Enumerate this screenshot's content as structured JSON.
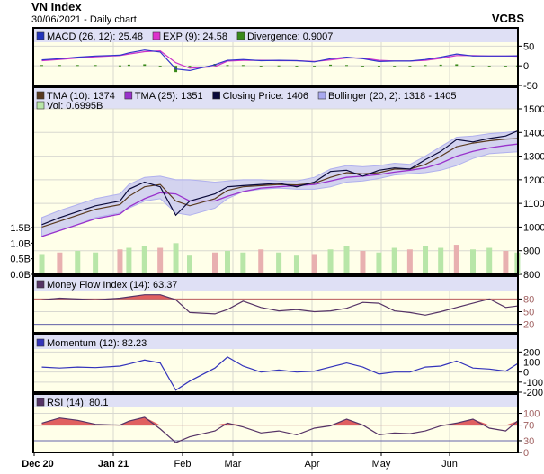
{
  "header": {
    "title": "VN Index",
    "subtitle": "30/06/2021 - Daily chart",
    "brand": "VCBS"
  },
  "colors": {
    "plot_bg": "#ffffe9",
    "legend_bg": "#dfe0f5",
    "grid": "#d8d8d0",
    "tma10": "#5a3a1e",
    "tma25": "#9933cc",
    "close": "#0a0a3a",
    "bollinger": "#b0b0ee",
    "vol_up": "#b8e6a8",
    "vol_down": "#e8b0b0",
    "macd": "#3333cc",
    "exp": "#cc33cc",
    "divergence": "#3a8a1a",
    "mfi": "#553366",
    "momentum": "#3333bb",
    "rsi": "#553366",
    "overbought_fill": "#e06060"
  },
  "chart_data": [
    {
      "type": "line",
      "panel": "macd",
      "legend": [
        {
          "label": "MACD (26, 12): 25.48",
          "color": "#2233bb"
        },
        {
          "label": "EXP (9): 24.58",
          "color": "#dd33cc"
        },
        {
          "label": "Divergence: 0.9007",
          "color": "#3a8a1a"
        }
      ],
      "yticks": [
        "50",
        "0",
        "-50"
      ],
      "ytick_values": [
        50,
        0,
        -50
      ],
      "ylim": [
        -50,
        60
      ],
      "dates": [
        "2020-12-04",
        "2020-12-11",
        "2020-12-18",
        "2020-12-25",
        "2021-01-04",
        "2021-01-08",
        "2021-01-15",
        "2021-01-22",
        "2021-01-29",
        "2021-02-05",
        "2021-02-19",
        "2021-02-26",
        "2021-03-05",
        "2021-03-12",
        "2021-03-19",
        "2021-03-26",
        "2021-04-02",
        "2021-04-09",
        "2021-04-16",
        "2021-04-23",
        "2021-04-30",
        "2021-05-07",
        "2021-05-14",
        "2021-05-21",
        "2021-05-28",
        "2021-06-04",
        "2021-06-11",
        "2021-06-18",
        "2021-06-25",
        "2021-06-30"
      ],
      "series": [
        {
          "name": "MACD",
          "values": [
            15,
            18,
            22,
            25,
            27,
            33,
            40,
            35,
            -8,
            -12,
            3,
            14,
            16,
            13,
            14,
            13,
            10,
            18,
            22,
            18,
            11,
            12,
            12,
            16,
            22,
            30,
            25,
            25,
            25,
            25.48
          ]
        },
        {
          "name": "EXP",
          "values": [
            13,
            16,
            20,
            23,
            26,
            30,
            36,
            38,
            8,
            -6,
            -2,
            12,
            14,
            14,
            13,
            13,
            11,
            15,
            20,
            20,
            14,
            12,
            12,
            14,
            19,
            26,
            26,
            25,
            25,
            24.58
          ]
        },
        {
          "name": "Divergence",
          "values": [
            2,
            2,
            2,
            2,
            1,
            3,
            4,
            -3,
            -16,
            -6,
            5,
            2,
            2,
            -1,
            1,
            0,
            -1,
            3,
            2,
            -2,
            -3,
            0,
            0,
            2,
            3,
            4,
            -1,
            0,
            0,
            0.9007
          ]
        }
      ]
    },
    {
      "type": "line",
      "panel": "price",
      "legend": [
        {
          "label": "TMA (10): 1374",
          "color": "#5a3a1e"
        },
        {
          "label": "TMA (25): 1351",
          "color": "#9933cc"
        },
        {
          "label": "Closing Price: 1406",
          "color": "#0a0a3a"
        },
        {
          "label": "Bollinger (20, 2): 1318 - 1405",
          "color": "#a8a8ee"
        },
        {
          "label": "Vol: 0.6995B",
          "color": "#b8e6a8"
        }
      ],
      "yticks": [
        "1500",
        "1400",
        "1300",
        "1200",
        "1100",
        "1000",
        "900",
        "800"
      ],
      "ytick_values": [
        1500,
        1400,
        1300,
        1200,
        1100,
        1000,
        900,
        800
      ],
      "ylim": [
        800,
        1500
      ],
      "vol_ticks": [
        "1.5B",
        "1.0B",
        "0.5B",
        "0.0B"
      ],
      "vol_tick_values": [
        1.5,
        1.0,
        0.5,
        0
      ],
      "series": [
        {
          "name": "Closing Price",
          "values": [
            1010,
            1040,
            1065,
            1090,
            1110,
            1160,
            1190,
            1170,
            1050,
            1110,
            1140,
            1170,
            1175,
            1180,
            1185,
            1170,
            1190,
            1235,
            1240,
            1215,
            1240,
            1250,
            1245,
            1285,
            1320,
            1370,
            1360,
            1375,
            1385,
            1406
          ]
        },
        {
          "name": "TMA (10)",
          "values": [
            1000,
            1025,
            1050,
            1075,
            1095,
            1130,
            1170,
            1180,
            1110,
            1090,
            1120,
            1155,
            1170,
            1175,
            1180,
            1178,
            1185,
            1210,
            1230,
            1225,
            1230,
            1245,
            1245,
            1265,
            1300,
            1340,
            1355,
            1365,
            1372,
            1374
          ]
        },
        {
          "name": "TMA (25)",
          "values": [
            960,
            985,
            1010,
            1035,
            1055,
            1085,
            1120,
            1145,
            1140,
            1110,
            1110,
            1130,
            1150,
            1165,
            1170,
            1175,
            1180,
            1195,
            1210,
            1215,
            1222,
            1232,
            1240,
            1250,
            1270,
            1300,
            1320,
            1335,
            1345,
            1351
          ]
        },
        {
          "name": "Bollinger upper",
          "values": [
            1040,
            1070,
            1095,
            1120,
            1140,
            1180,
            1210,
            1215,
            1200,
            1200,
            1190,
            1195,
            1200,
            1200,
            1195,
            1195,
            1210,
            1245,
            1260,
            1255,
            1260,
            1270,
            1265,
            1300,
            1340,
            1380,
            1385,
            1395,
            1400,
            1405
          ]
        },
        {
          "name": "Bollinger lower",
          "values": [
            960,
            985,
            1010,
            1040,
            1060,
            1080,
            1110,
            1120,
            1060,
            1050,
            1080,
            1120,
            1150,
            1160,
            1165,
            1160,
            1160,
            1170,
            1190,
            1195,
            1205,
            1220,
            1225,
            1230,
            1240,
            1260,
            1290,
            1310,
            1315,
            1318
          ]
        },
        {
          "name": "Vol",
          "values": [
            0.65,
            0.7,
            0.75,
            0.7,
            0.8,
            0.85,
            0.9,
            0.85,
            1.0,
            0.6,
            0.7,
            0.75,
            0.7,
            0.8,
            0.7,
            0.6,
            0.65,
            0.8,
            0.9,
            0.75,
            0.7,
            0.85,
            0.8,
            0.9,
            0.85,
            0.95,
            0.8,
            0.85,
            0.75,
            0.6995
          ]
        }
      ]
    },
    {
      "type": "line",
      "panel": "mfi",
      "legend": [
        {
          "label": "Money Flow Index (14): 63.37",
          "color": "#553366"
        }
      ],
      "yticks": [
        "80",
        "50",
        "20"
      ],
      "ytick_values": [
        80,
        50,
        20
      ],
      "ylim": [
        0,
        100
      ],
      "threshold": 80,
      "series": [
        {
          "name": "MFI",
          "values": [
            78,
            82,
            80,
            78,
            82,
            85,
            90,
            90,
            78,
            48,
            45,
            55,
            75,
            60,
            52,
            55,
            50,
            52,
            58,
            72,
            70,
            52,
            48,
            42,
            50,
            60,
            70,
            80,
            60,
            63.37
          ]
        }
      ]
    },
    {
      "type": "line",
      "panel": "momentum",
      "legend": [
        {
          "label": "Momentum (12): 82.23",
          "color": "#3333bb"
        }
      ],
      "yticks": [
        "200",
        "100",
        "0",
        "-100",
        "-200"
      ],
      "ytick_values": [
        200,
        100,
        0,
        -100,
        -200
      ],
      "ylim": [
        -200,
        230
      ],
      "series": [
        {
          "name": "Momentum",
          "values": [
            50,
            40,
            50,
            45,
            60,
            80,
            120,
            90,
            -180,
            -90,
            40,
            150,
            60,
            0,
            20,
            0,
            10,
            50,
            90,
            50,
            -20,
            0,
            0,
            50,
            60,
            110,
            40,
            30,
            10,
            82.23
          ]
        }
      ]
    },
    {
      "type": "line",
      "panel": "rsi",
      "legend": [
        {
          "label": "RSI (14): 80.1",
          "color": "#553366"
        }
      ],
      "yticks": [
        "100",
        "70",
        "30",
        "0"
      ],
      "ytick_values": [
        100,
        70,
        30,
        0
      ],
      "ylim": [
        0,
        115
      ],
      "threshold": 70,
      "lower": 30,
      "series": [
        {
          "name": "RSI",
          "values": [
            75,
            88,
            82,
            72,
            70,
            80,
            90,
            60,
            25,
            40,
            55,
            75,
            65,
            50,
            55,
            45,
            62,
            68,
            85,
            70,
            45,
            50,
            48,
            55,
            68,
            75,
            85,
            62,
            55,
            80.1
          ]
        }
      ]
    }
  ],
  "xaxis": {
    "labels": [
      "Dec 20",
      "Jan 21",
      "Feb",
      "Mar",
      "Apr",
      "May",
      "Jun"
    ],
    "bold": [
      true,
      true,
      false,
      false,
      false,
      false,
      false
    ]
  }
}
